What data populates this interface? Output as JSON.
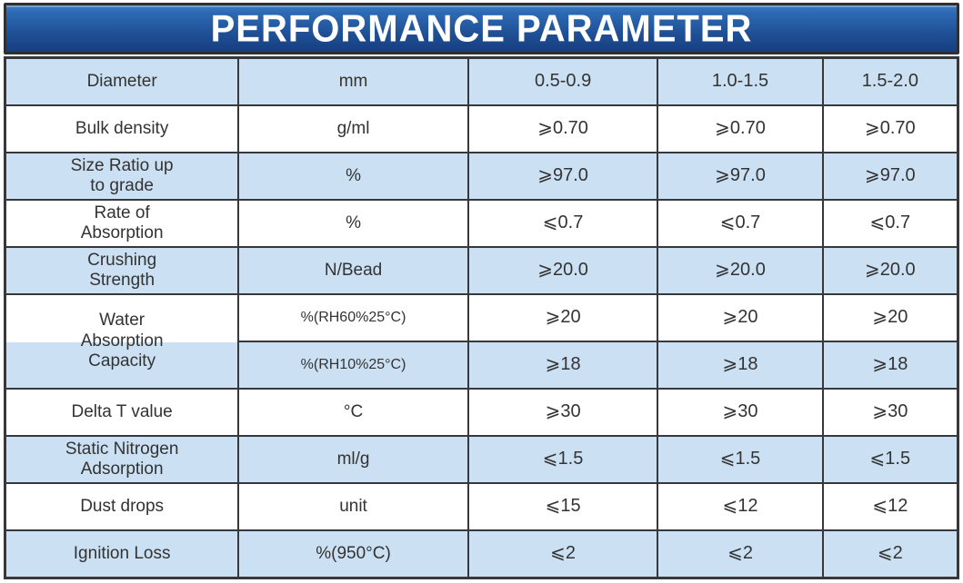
{
  "title": "PERFORMANCE PARAMETER",
  "colors": {
    "banner_top": "#3273bb",
    "banner_bottom": "#173f80",
    "banner_border": "#2e3134",
    "row_blue": "#cbe1f3",
    "row_white": "#ffffff",
    "table_border": "#36383b",
    "text": "#333333",
    "title_text": "#ffffff"
  },
  "table": {
    "header": {
      "label": "Diameter",
      "unit": "mm",
      "values": [
        "0.5-0.9",
        "1.0-1.5",
        "1.5-2.0"
      ]
    },
    "rows": [
      {
        "label": "Bulk density",
        "unit": "g/ml",
        "values": [
          "⩾0.70",
          "⩾0.70",
          "⩾0.70"
        ]
      },
      {
        "label": "Size Ratio up\nto grade",
        "unit": "%",
        "values": [
          "⩾97.0",
          "⩾97.0",
          "⩾97.0"
        ]
      },
      {
        "label": "Rate of\nAbsorption",
        "unit": "%",
        "values": [
          "⩽0.7",
          "⩽0.7",
          "⩽0.7"
        ]
      },
      {
        "label": "Crushing\nStrength",
        "unit": "N/Bead",
        "values": [
          "⩾20.0",
          "⩾20.0",
          "⩾20.0"
        ]
      },
      {
        "label": "Water\nAbsorption\nCapacity",
        "unit": "%(RH60%25°C)",
        "values": [
          "⩾20",
          "⩾20",
          "⩾20"
        ]
      },
      {
        "label": "",
        "unit": "%(RH10%25°C)",
        "values": [
          "⩾18",
          "⩾18",
          "⩾18"
        ]
      },
      {
        "label": "Delta T value",
        "unit": "°C",
        "values": [
          "⩾30",
          "⩾30",
          "⩾30"
        ]
      },
      {
        "label": "Static Nitrogen\nAdsorption",
        "unit": "ml/g",
        "values": [
          "⩽1.5",
          "⩽1.5",
          "⩽1.5"
        ]
      },
      {
        "label": "Dust drops",
        "unit": "unit",
        "values": [
          "⩽15",
          "⩽12",
          "⩽12"
        ]
      },
      {
        "label": "Ignition Loss",
        "unit": "%(950°C)",
        "values": [
          "⩽2",
          "⩽2",
          "⩽2"
        ]
      }
    ]
  }
}
